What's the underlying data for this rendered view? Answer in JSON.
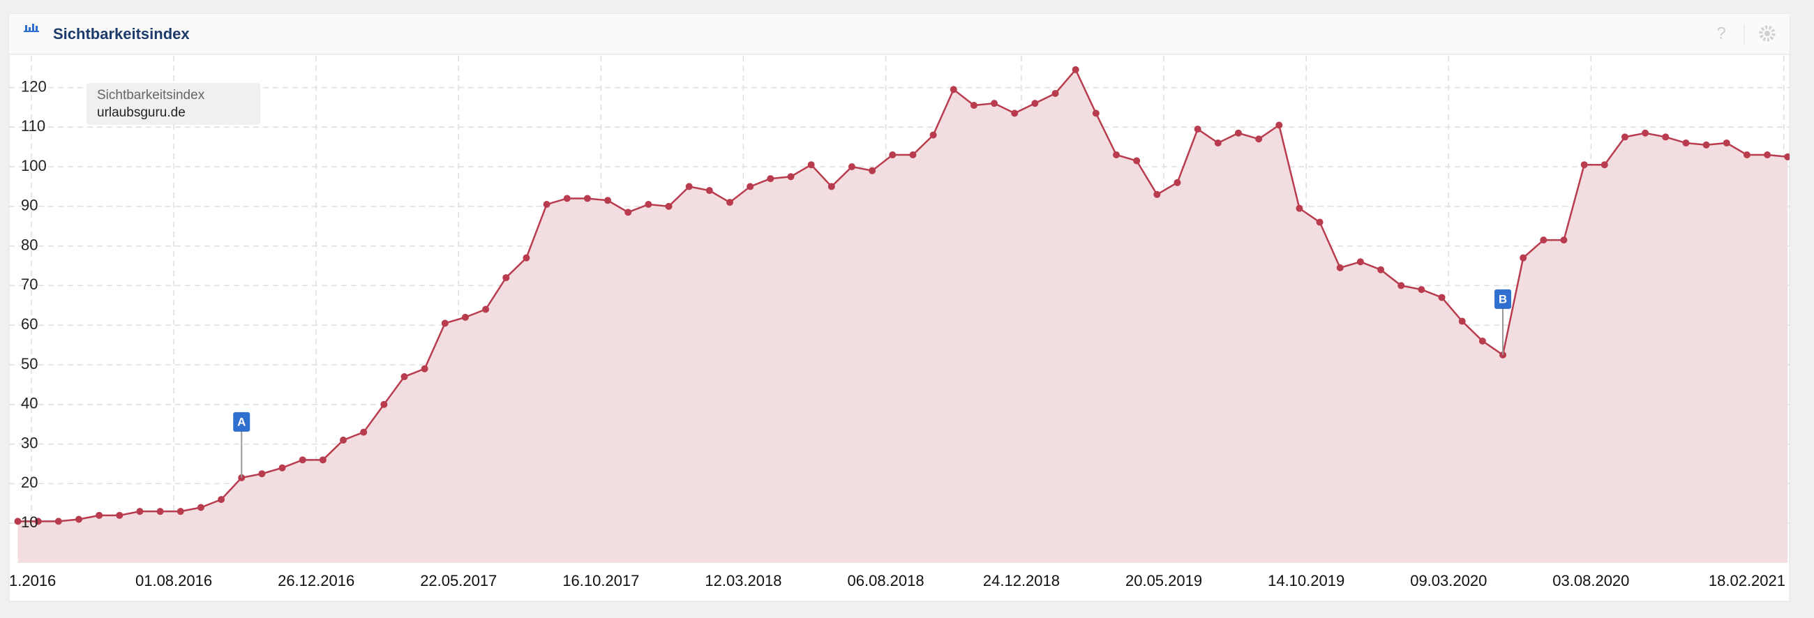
{
  "chart_data": {
    "type": "line",
    "title": "Sichtbarkeitsindex",
    "legend_title": "Sichtbarkeitsindex",
    "x": [
      "2016-02-22",
      "2016-03-14",
      "2016-04-04",
      "2016-04-25",
      "2016-05-16",
      "2016-06-06",
      "2016-06-27",
      "2016-07-18",
      "2016-08-08",
      "2016-08-29",
      "2016-09-19",
      "2016-10-10",
      "2016-10-31",
      "2016-11-21",
      "2016-12-12",
      "2017-01-02",
      "2017-01-23",
      "2017-02-13",
      "2017-03-06",
      "2017-03-27",
      "2017-04-17",
      "2017-05-08",
      "2017-05-29",
      "2017-06-19",
      "2017-07-10",
      "2017-07-31",
      "2017-08-21",
      "2017-09-11",
      "2017-10-02",
      "2017-10-23",
      "2017-11-13",
      "2017-12-04",
      "2017-12-25",
      "2018-01-15",
      "2018-02-05",
      "2018-02-26",
      "2018-03-19",
      "2018-04-09",
      "2018-04-30",
      "2018-05-21",
      "2018-06-11",
      "2018-07-02",
      "2018-07-23",
      "2018-08-13",
      "2018-09-03",
      "2018-09-24",
      "2018-10-15",
      "2018-11-05",
      "2018-11-26",
      "2018-12-17",
      "2019-01-07",
      "2019-01-28",
      "2019-02-18",
      "2019-03-11",
      "2019-04-01",
      "2019-04-22",
      "2019-05-13",
      "2019-06-03",
      "2019-06-24",
      "2019-07-15",
      "2019-08-05",
      "2019-08-26",
      "2019-09-16",
      "2019-10-07",
      "2019-10-28",
      "2019-11-18",
      "2019-12-09",
      "2019-12-30",
      "2020-01-20",
      "2020-02-10",
      "2020-03-02",
      "2020-03-23",
      "2020-04-13",
      "2020-05-04",
      "2020-05-25",
      "2020-06-15",
      "2020-07-06",
      "2020-07-27",
      "2020-08-17",
      "2020-09-07",
      "2020-09-28",
      "2020-10-19",
      "2020-11-09",
      "2020-11-30",
      "2020-12-21",
      "2021-01-11",
      "2021-02-01",
      "2021-02-22"
    ],
    "series": [
      {
        "name": "urlaubsguru.de",
        "color": "#b83b4e",
        "fill": "#f2dde0",
        "values": [
          10.5,
          10.5,
          10.5,
          11,
          12,
          12,
          13,
          13,
          13,
          14,
          16,
          21.5,
          22.5,
          24,
          26,
          26,
          31,
          33,
          40,
          47,
          49,
          60.5,
          62,
          64,
          72,
          77,
          90.5,
          92,
          92,
          91.5,
          88.5,
          90.5,
          90,
          95,
          94,
          91,
          95,
          97,
          97.5,
          100.5,
          95,
          100,
          99,
          103,
          103,
          108,
          119.5,
          115.5,
          116,
          113.5,
          116,
          118.5,
          124.5,
          113.5,
          103,
          101.5,
          93,
          96,
          109.5,
          106,
          108.5,
          107,
          110.5,
          89.5,
          86,
          74.5,
          76,
          74,
          70,
          69,
          67,
          61,
          56,
          52.5,
          77,
          81.5,
          81.5,
          100.5,
          100.5,
          107.5,
          108.5,
          107.5,
          106,
          105.5,
          106,
          103,
          103,
          102.5
        ]
      }
    ],
    "xlim": [
      "2016-02-13",
      "2021-02-24"
    ],
    "xticks": [
      {
        "value": "2016-03-07",
        "label": "1.2016"
      },
      {
        "value": "2016-08-01",
        "label": "01.08.2016"
      },
      {
        "value": "2016-12-26",
        "label": "26.12.2016"
      },
      {
        "value": "2017-05-22",
        "label": "22.05.2017"
      },
      {
        "value": "2017-10-16",
        "label": "16.10.2017"
      },
      {
        "value": "2018-03-12",
        "label": "12.03.2018"
      },
      {
        "value": "2018-08-06",
        "label": "06.08.2018"
      },
      {
        "value": "2018-12-24",
        "label": "24.12.2018"
      },
      {
        "value": "2019-05-20",
        "label": "20.05.2019"
      },
      {
        "value": "2019-10-14",
        "label": "14.10.2019"
      },
      {
        "value": "2020-03-09",
        "label": "09.03.2020"
      },
      {
        "value": "2020-08-03",
        "label": "03.08.2020"
      },
      {
        "value": "2021-02-18",
        "label": "18.02.2021"
      }
    ],
    "ylim": [
      0,
      128
    ],
    "yticks": [
      10,
      20,
      30,
      40,
      50,
      60,
      70,
      80,
      90,
      100,
      110,
      120
    ],
    "grid": true,
    "annotations": [
      {
        "label": "A",
        "x": "2016-10-10"
      },
      {
        "label": "B",
        "x": "2020-05-04"
      }
    ]
  }
}
